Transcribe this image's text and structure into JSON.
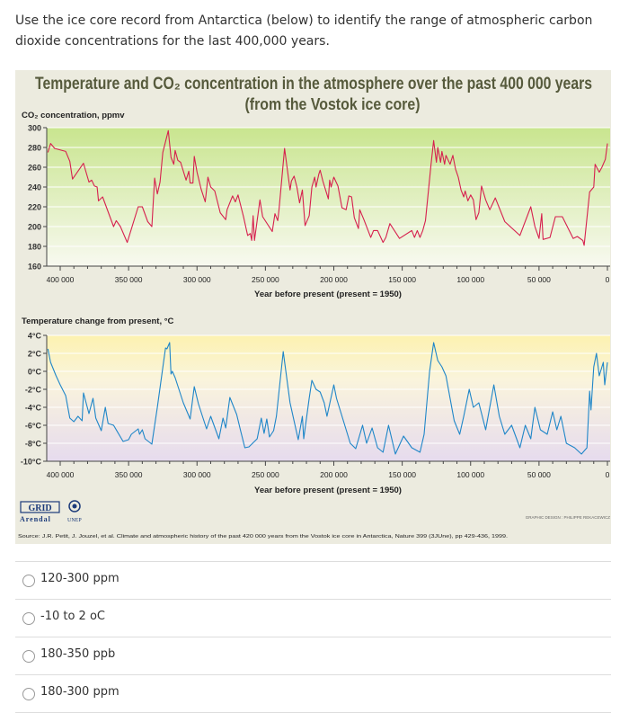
{
  "question": "Use the ice core record from Antarctica (below) to identify the range of atmospheric carbon dioxide concentrations for the last 400,000 years.",
  "figure": {
    "title_line1": "Temperature and CO₂ concentration in the atmosphere over the past 400 000 years",
    "title_line2": "(from the Vostok ice core)",
    "logo_text": "GRID Arendal UNEP",
    "credit": "GRAPHIC DESIGN : PHILIPPE REKACEWICZ",
    "source": "Source: J.R. Petit, J. Jouzel, et al. Climate and atmospheric history of the past 420 000 years from the Vostok ice core in Antarctica, Nature 399 (3JUne), pp 429-436, 1999."
  },
  "chart_data": [
    {
      "type": "line",
      "ylabel": "CO₂ concentration, ppmv",
      "xlabel": "Year before present (present = 1950)",
      "xlim": [
        410000,
        0
      ],
      "ylim": [
        160,
        300
      ],
      "xticks": [
        400000,
        350000,
        300000,
        250000,
        200000,
        150000,
        100000,
        50000,
        0
      ],
      "xtick_labels": [
        "400 000",
        "350 000",
        "300 000",
        "250 000",
        "200 000",
        "150 000",
        "100 000",
        "50 000",
        "0"
      ],
      "yticks": [
        160,
        180,
        200,
        220,
        240,
        260,
        280,
        300
      ],
      "ytick_labels": [
        "160",
        "180",
        "200",
        "220",
        "240",
        "260",
        "280",
        "300"
      ],
      "grid": true,
      "color": "#d6204e",
      "points": [
        [
          409000,
          275
        ],
        [
          407000,
          284
        ],
        [
          404000,
          279
        ],
        [
          396000,
          276
        ],
        [
          393000,
          266
        ],
        [
          391000,
          248
        ],
        [
          383000,
          264
        ],
        [
          379000,
          245
        ],
        [
          377000,
          247
        ],
        [
          375000,
          241
        ],
        [
          373000,
          240
        ],
        [
          372000,
          226
        ],
        [
          369000,
          230
        ],
        [
          361000,
          200
        ],
        [
          359000,
          206
        ],
        [
          356000,
          200
        ],
        [
          351000,
          184
        ],
        [
          343000,
          220
        ],
        [
          340000,
          220
        ],
        [
          336000,
          205
        ],
        [
          333000,
          200
        ],
        [
          331000,
          249
        ],
        [
          329000,
          233
        ],
        [
          327000,
          245
        ],
        [
          325000,
          275
        ],
        [
          321000,
          297
        ],
        [
          319000,
          270
        ],
        [
          317000,
          263
        ],
        [
          316000,
          277
        ],
        [
          314000,
          267
        ],
        [
          312000,
          265
        ],
        [
          308000,
          247
        ],
        [
          306000,
          256
        ],
        [
          305000,
          244
        ],
        [
          303000,
          244
        ],
        [
          302000,
          271
        ],
        [
          300000,
          255
        ],
        [
          297000,
          238
        ],
        [
          294000,
          225
        ],
        [
          292000,
          250
        ],
        [
          290000,
          240
        ],
        [
          287000,
          236
        ],
        [
          283000,
          214
        ],
        [
          279000,
          207
        ],
        [
          278000,
          217
        ],
        [
          274000,
          231
        ],
        [
          272000,
          225
        ],
        [
          270000,
          232
        ],
        [
          266000,
          210
        ],
        [
          263000,
          191
        ],
        [
          261000,
          193
        ],
        [
          260000,
          186
        ],
        [
          259000,
          211
        ],
        [
          258000,
          186
        ],
        [
          254000,
          227
        ],
        [
          252000,
          210
        ],
        [
          245000,
          195
        ],
        [
          243000,
          213
        ],
        [
          241000,
          206
        ],
        [
          240000,
          218
        ],
        [
          236000,
          279
        ],
        [
          232000,
          237
        ],
        [
          231000,
          246
        ],
        [
          229000,
          251
        ],
        [
          227000,
          240
        ],
        [
          225000,
          224
        ],
        [
          223000,
          237
        ],
        [
          221000,
          201
        ],
        [
          218000,
          211
        ],
        [
          216000,
          240
        ],
        [
          214000,
          250
        ],
        [
          213000,
          240
        ],
        [
          211000,
          253
        ],
        [
          210000,
          257
        ],
        [
          208000,
          246
        ],
        [
          204000,
          228
        ],
        [
          203000,
          247
        ],
        [
          202000,
          240
        ],
        [
          200000,
          250
        ],
        [
          197000,
          241
        ],
        [
          194000,
          219
        ],
        [
          191000,
          217
        ],
        [
          189000,
          231
        ],
        [
          187000,
          230
        ],
        [
          185000,
          209
        ],
        [
          182000,
          198
        ],
        [
          181000,
          217
        ],
        [
          178000,
          207
        ],
        [
          173000,
          189
        ],
        [
          171000,
          196
        ],
        [
          168000,
          196
        ],
        [
          164000,
          184
        ],
        [
          162000,
          189
        ],
        [
          159000,
          203
        ],
        [
          152000,
          188
        ],
        [
          143000,
          196
        ],
        [
          141000,
          189
        ],
        [
          139000,
          196
        ],
        [
          137000,
          189
        ],
        [
          135000,
          196
        ],
        [
          133000,
          206
        ],
        [
          129000,
          262
        ],
        [
          127000,
          287
        ],
        [
          125000,
          265
        ],
        [
          124000,
          280
        ],
        [
          122000,
          265
        ],
        [
          121000,
          276
        ],
        [
          119000,
          263
        ],
        [
          118000,
          272
        ],
        [
          115000,
          263
        ],
        [
          113000,
          272
        ],
        [
          111000,
          258
        ],
        [
          109000,
          250
        ],
        [
          107000,
          237
        ],
        [
          105000,
          230
        ],
        [
          104000,
          236
        ],
        [
          102000,
          226
        ],
        [
          100000,
          232
        ],
        [
          98000,
          227
        ],
        [
          96000,
          207
        ],
        [
          94000,
          214
        ],
        [
          92000,
          241
        ],
        [
          89000,
          227
        ],
        [
          86000,
          217
        ],
        [
          82000,
          229
        ],
        [
          75000,
          205
        ],
        [
          64000,
          191
        ],
        [
          56000,
          220
        ],
        [
          53000,
          200
        ],
        [
          50000,
          188
        ],
        [
          48000,
          213
        ],
        [
          47000,
          187
        ],
        [
          42000,
          189
        ],
        [
          38000,
          210
        ],
        [
          33000,
          210
        ],
        [
          25000,
          188
        ],
        [
          22000,
          190
        ],
        [
          18000,
          186
        ],
        [
          17000,
          181
        ],
        [
          13000,
          235
        ],
        [
          10000,
          240
        ],
        [
          9000,
          263
        ],
        [
          6000,
          255
        ],
        [
          4000,
          260
        ],
        [
          1500,
          268
        ],
        [
          0,
          284
        ]
      ]
    },
    {
      "type": "line",
      "ylabel": "Temperature change from present, °C",
      "xlabel": "Year before present (present = 1950)",
      "xlim": [
        410000,
        0
      ],
      "ylim": [
        -10,
        4
      ],
      "xticks": [
        400000,
        350000,
        300000,
        250000,
        200000,
        150000,
        100000,
        50000,
        0
      ],
      "xtick_labels": [
        "400 000",
        "350 000",
        "300 000",
        "250 000",
        "200 000",
        "150 000",
        "100 000",
        "50 000",
        "0"
      ],
      "yticks": [
        -10,
        -8,
        -6,
        -4,
        -2,
        0,
        2,
        4
      ],
      "ytick_labels": [
        "-10°C",
        "-8°C",
        "-6°C",
        "-4°C",
        "-2°C",
        "0°C",
        "2°C",
        "4°C"
      ],
      "grid": true,
      "color": "#1f86c8",
      "points": [
        [
          409000,
          2.5
        ],
        [
          407000,
          1
        ],
        [
          403000,
          -0.5
        ],
        [
          400000,
          -1.5
        ],
        [
          396000,
          -2.7
        ],
        [
          393000,
          -5.2
        ],
        [
          390000,
          -5.6
        ],
        [
          387000,
          -5
        ],
        [
          384000,
          -5.5
        ],
        [
          383000,
          -2.4
        ],
        [
          379000,
          -4.7
        ],
        [
          376000,
          -3
        ],
        [
          374000,
          -5.2
        ],
        [
          370000,
          -6.6
        ],
        [
          367000,
          -4
        ],
        [
          365000,
          -5.8
        ],
        [
          361000,
          -6
        ],
        [
          354000,
          -7.8
        ],
        [
          350000,
          -7.6
        ],
        [
          348000,
          -7
        ],
        [
          343000,
          -6.4
        ],
        [
          342000,
          -7
        ],
        [
          340000,
          -6.5
        ],
        [
          338000,
          -7.5
        ],
        [
          333000,
          -8.1
        ],
        [
          329000,
          -4
        ],
        [
          323000,
          2.6
        ],
        [
          322000,
          2.5
        ],
        [
          320000,
          3.2
        ],
        [
          319000,
          -0.3
        ],
        [
          318000,
          0
        ],
        [
          316000,
          -0.7
        ],
        [
          310000,
          -3.5
        ],
        [
          305000,
          -5.3
        ],
        [
          302000,
          -1.7
        ],
        [
          299000,
          -3.6
        ],
        [
          296000,
          -5
        ],
        [
          293000,
          -6.4
        ],
        [
          290000,
          -5
        ],
        [
          284000,
          -7.5
        ],
        [
          281000,
          -5.2
        ],
        [
          279000,
          -6.3
        ],
        [
          276000,
          -2.9
        ],
        [
          271000,
          -4.8
        ],
        [
          268000,
          -6.7
        ],
        [
          265000,
          -8.5
        ],
        [
          262000,
          -8.4
        ],
        [
          256000,
          -7.5
        ],
        [
          253000,
          -5.2
        ],
        [
          251000,
          -6.9
        ],
        [
          249000,
          -5.3
        ],
        [
          247000,
          -7.3
        ],
        [
          244000,
          -6.6
        ],
        [
          242000,
          -5
        ],
        [
          237000,
          2.2
        ],
        [
          232000,
          -3.5
        ],
        [
          226000,
          -7.6
        ],
        [
          223000,
          -5
        ],
        [
          222000,
          -7.5
        ],
        [
          218000,
          -3
        ],
        [
          216000,
          -1
        ],
        [
          213000,
          -2
        ],
        [
          210000,
          -2.3
        ],
        [
          207000,
          -3.5
        ],
        [
          205000,
          -5
        ],
        [
          200000,
          -1.5
        ],
        [
          198000,
          -3
        ],
        [
          195000,
          -4.5
        ],
        [
          192000,
          -6
        ],
        [
          188000,
          -8
        ],
        [
          184000,
          -8.6
        ],
        [
          179000,
          -6
        ],
        [
          176000,
          -8
        ],
        [
          172000,
          -6.3
        ],
        [
          168000,
          -8.5
        ],
        [
          164000,
          -9
        ],
        [
          160000,
          -6
        ],
        [
          155000,
          -9.2
        ],
        [
          149000,
          -7.2
        ],
        [
          143000,
          -8.5
        ],
        [
          137000,
          -9
        ],
        [
          134000,
          -7
        ],
        [
          130000,
          0
        ],
        [
          127000,
          3.2
        ],
        [
          124000,
          1.2
        ],
        [
          121000,
          0.5
        ],
        [
          118000,
          -0.5
        ],
        [
          115000,
          -3
        ],
        [
          112000,
          -5.5
        ],
        [
          108000,
          -7
        ],
        [
          105000,
          -5
        ],
        [
          101000,
          -2
        ],
        [
          98000,
          -4
        ],
        [
          94000,
          -3.5
        ],
        [
          89000,
          -6.5
        ],
        [
          83000,
          -1.5
        ],
        [
          79000,
          -5
        ],
        [
          75000,
          -7
        ],
        [
          70000,
          -6
        ],
        [
          64000,
          -8.5
        ],
        [
          60000,
          -6
        ],
        [
          56000,
          -7.5
        ],
        [
          53000,
          -4
        ],
        [
          49000,
          -6.5
        ],
        [
          44000,
          -7
        ],
        [
          40000,
          -4.5
        ],
        [
          37000,
          -6.5
        ],
        [
          34000,
          -5
        ],
        [
          30000,
          -8
        ],
        [
          24000,
          -8.5
        ],
        [
          19000,
          -9.2
        ],
        [
          15000,
          -8.5
        ],
        [
          13000,
          -2.2
        ],
        [
          12000,
          -4.3
        ],
        [
          10000,
          0.5
        ],
        [
          8000,
          2
        ],
        [
          6000,
          -0.5
        ],
        [
          3000,
          1
        ],
        [
          2000,
          -1.5
        ],
        [
          0,
          1
        ]
      ]
    }
  ],
  "options": [
    {
      "label": "120-300 ppm",
      "selected": false
    },
    {
      "label": "-10 to 2 oC",
      "selected": false
    },
    {
      "label": "180-350 ppb",
      "selected": false
    },
    {
      "label": "180-300 ppm",
      "selected": false
    }
  ]
}
